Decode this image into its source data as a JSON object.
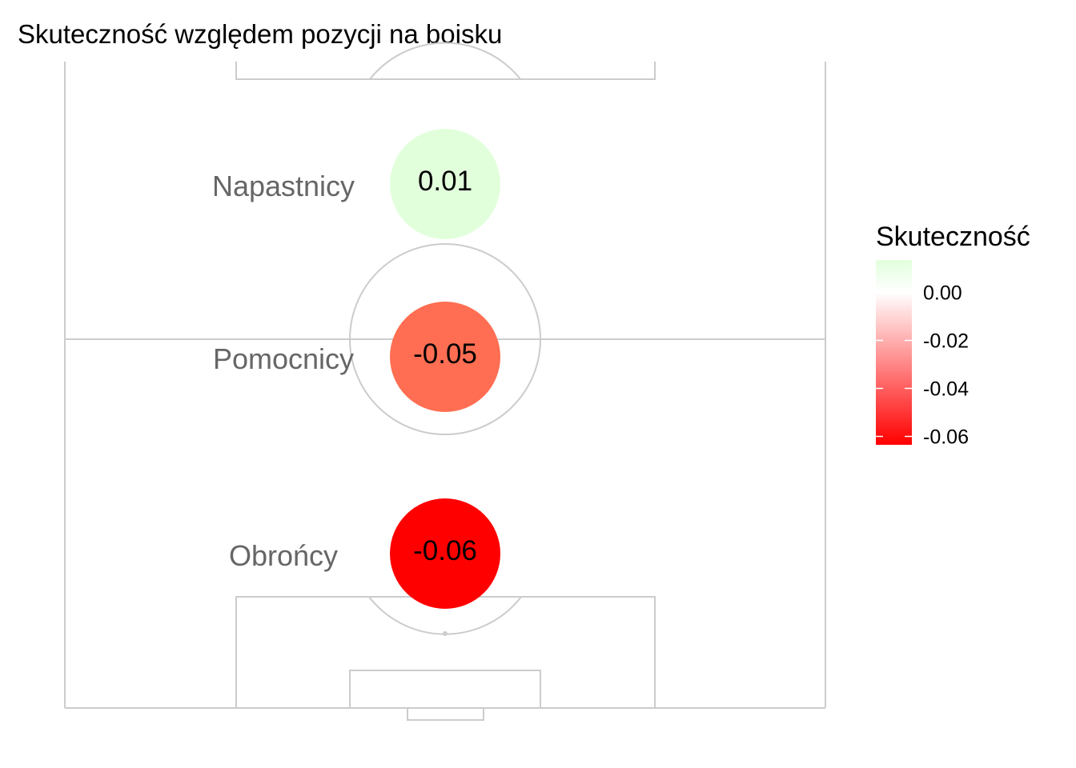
{
  "chart_data": {
    "type": "scatter",
    "title": "Skuteczność względem pozycji na boisku",
    "points": [
      {
        "position": "Napastnicy",
        "value": 0.01,
        "label": "0.01",
        "color": "#e2ffdc"
      },
      {
        "position": "Pomocnicy",
        "value": -0.05,
        "label": "-0.05",
        "color": "#ff6e52"
      },
      {
        "position": "Obrońcy",
        "value": -0.06,
        "label": "-0.06",
        "color": "#ff0000"
      }
    ],
    "legend": {
      "title": "Skuteczność",
      "placement": "right",
      "range": [
        -0.0635,
        0.0135
      ],
      "ticks": [
        {
          "value": 0.0,
          "label": "0.00"
        },
        {
          "value": -0.02,
          "label": "-0.02"
        },
        {
          "value": -0.04,
          "label": "-0.04"
        },
        {
          "value": -0.06,
          "label": "-0.06"
        }
      ],
      "colors": {
        "high": "#e2ffdc",
        "mid": "#ffffff",
        "low": "#ff0000"
      }
    },
    "grid": false
  }
}
